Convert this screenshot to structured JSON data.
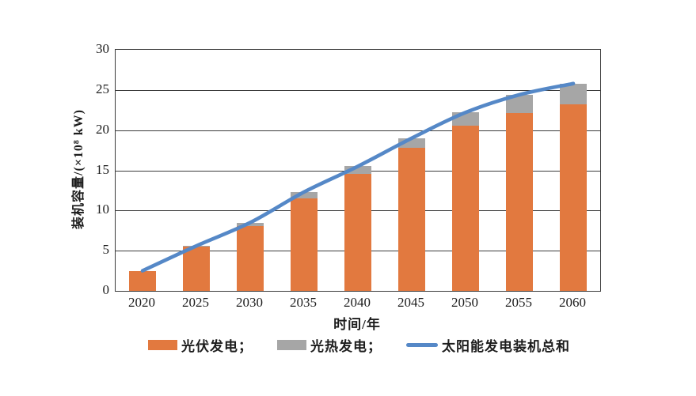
{
  "figure": {
    "background_color": "#ffffff",
    "gridline_color": "#3b3b3b"
  },
  "chart_data": {
    "type": "bar",
    "subtype": "stacked-bars-with-smoothed-line",
    "title": "",
    "categories": [
      "2020",
      "2025",
      "2030",
      "2035",
      "2040",
      "2045",
      "2050",
      "2055",
      "2060"
    ],
    "series": [
      {
        "name": "光伏发电",
        "render": "stacked-bar",
        "color": "#E2793F",
        "values": [
          2.5,
          5.5,
          8.1,
          11.5,
          14.6,
          17.8,
          20.6,
          22.1,
          23.2
        ]
      },
      {
        "name": "光热发电",
        "render": "stacked-bar",
        "color": "#A6A6A6",
        "values": [
          0,
          0.1,
          0.4,
          0.8,
          0.9,
          1.2,
          1.6,
          2.3,
          2.6
        ]
      },
      {
        "name": "太阳能发电装机总和",
        "render": "line",
        "color": "#5588C7",
        "values": [
          2.5,
          5.6,
          8.5,
          12.3,
          15.5,
          19.0,
          22.2,
          24.4,
          25.8
        ]
      }
    ],
    "xlabel": "时间/年",
    "ylabel": "装机容量/(×10⁸ kW)",
    "ylim": [
      0,
      30
    ],
    "yticks": [
      0,
      5,
      10,
      15,
      20,
      25,
      30
    ],
    "grid": true,
    "legend_position": "bottom",
    "legend": [
      {
        "label": "光伏发电；",
        "swatch": "bar",
        "color": "#E2793F"
      },
      {
        "label": "光热发电；",
        "swatch": "bar",
        "color": "#A6A6A6"
      },
      {
        "label": "太阳能发电装机总和",
        "swatch": "line",
        "color": "#5588C7"
      }
    ]
  }
}
